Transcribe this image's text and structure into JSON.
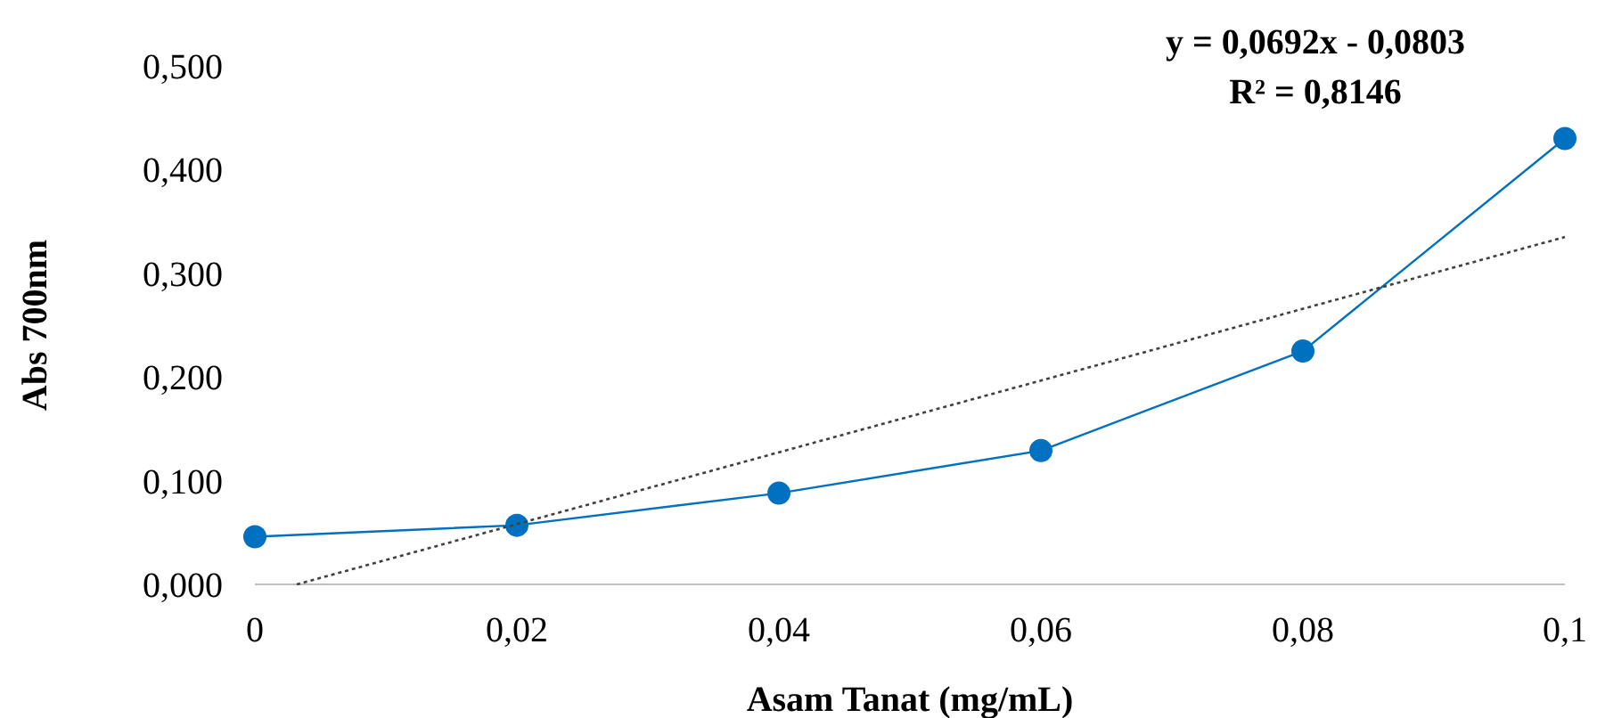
{
  "chart_data": {
    "type": "line",
    "xlabel": "Asam Tanat (mg/mL)",
    "ylabel": "Abs 700nm",
    "annotations": [
      "y = 0,0692x - 0,0803",
      "R² = 0,8146"
    ],
    "xlim": [
      0,
      0.1
    ],
    "xticks": [
      {
        "value": 0,
        "label": "0"
      },
      {
        "value": 0.02,
        "label": "0,02"
      },
      {
        "value": 0.04,
        "label": "0,04"
      },
      {
        "value": 0.06,
        "label": "0,06"
      },
      {
        "value": 0.08,
        "label": "0,08"
      },
      {
        "value": 0.1,
        "label": "0,1"
      }
    ],
    "ylim": [
      0,
      0.5
    ],
    "yticks": [
      {
        "value": 0,
        "label": "0,000"
      },
      {
        "value": 0.1,
        "label": "0,100"
      },
      {
        "value": 0.2,
        "label": "0,200"
      },
      {
        "value": 0.3,
        "label": "0,300"
      },
      {
        "value": 0.4,
        "label": "0,400"
      },
      {
        "value": 0.5,
        "label": "0,500"
      }
    ],
    "grid": false,
    "series": [
      {
        "color": "#0070c0",
        "marker": "circle",
        "line_style": "solid",
        "x": [
          0,
          0.02,
          0.04,
          0.06,
          0.08,
          0.1
        ],
        "values": [
          0.046,
          0.057,
          0.088,
          0.129,
          0.225,
          0.43
        ]
      },
      {
        "color": "#404040",
        "marker": "none",
        "line_style": "dotted",
        "x": [
          0.0032,
          0.1
        ],
        "values": [
          0,
          0.335
        ]
      }
    ]
  }
}
